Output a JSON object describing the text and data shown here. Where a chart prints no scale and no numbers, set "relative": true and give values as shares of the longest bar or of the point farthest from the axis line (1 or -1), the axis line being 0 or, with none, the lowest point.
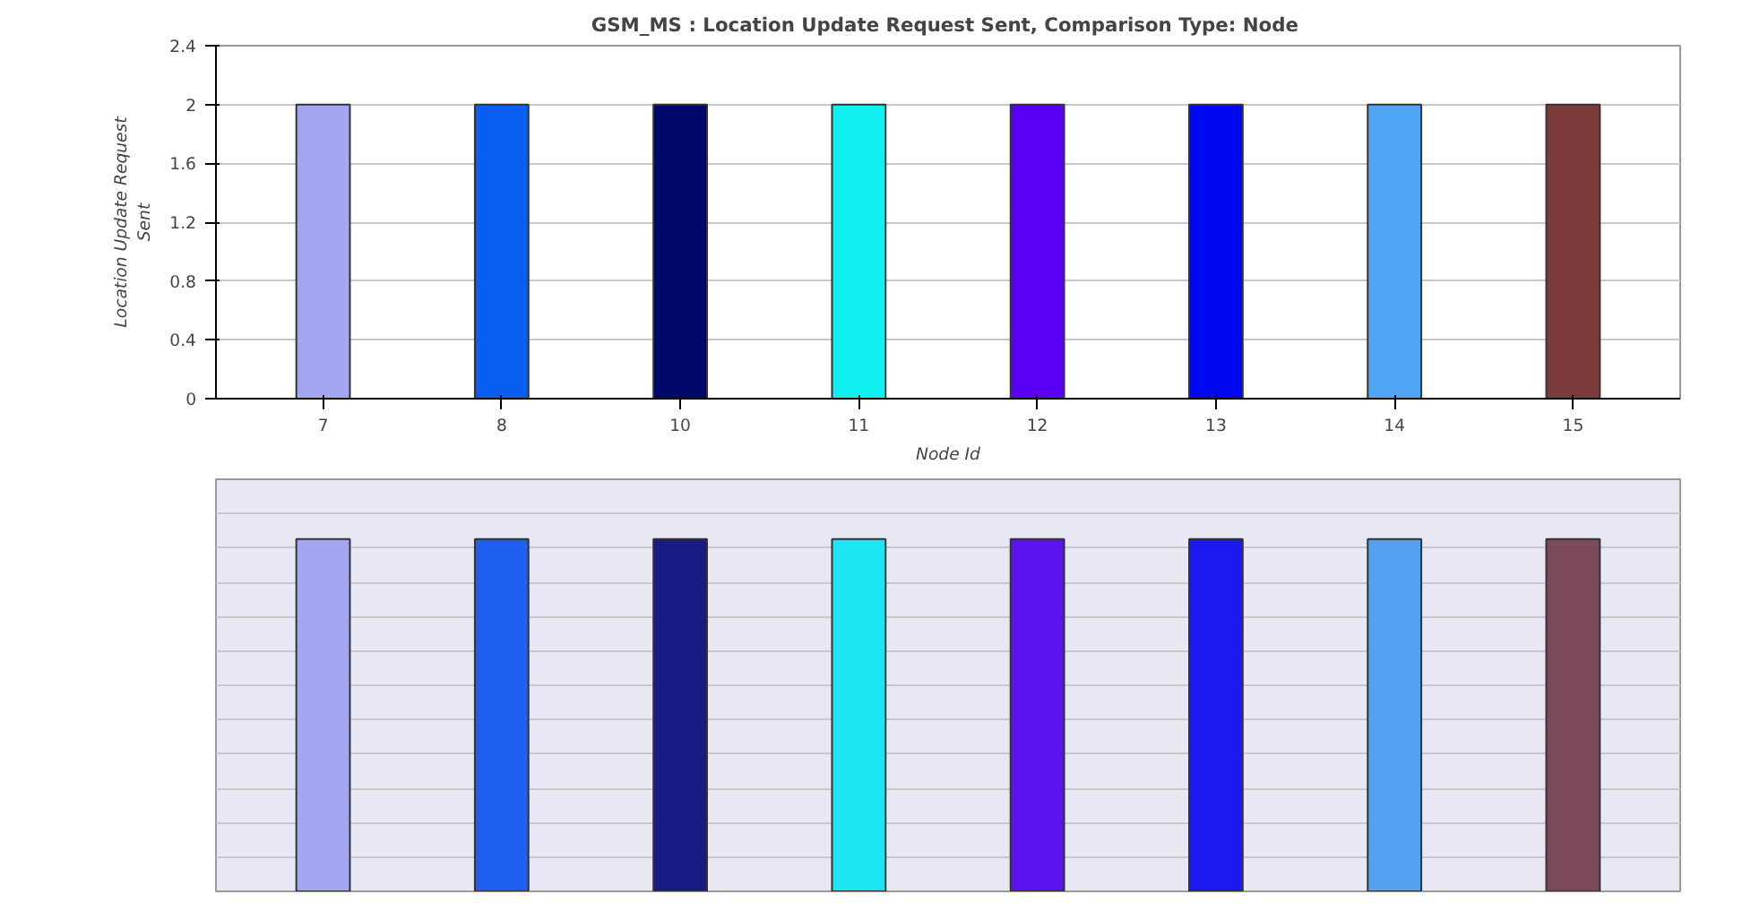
{
  "chart_data": [
    {
      "type": "bar",
      "title": "GSM_MS :  Location Update Request Sent, Comparison Type: Node",
      "xlabel": "Node Id",
      "ylabel": "Location Update Request\nSent",
      "categories": [
        "7",
        "8",
        "10",
        "11",
        "12",
        "13",
        "14",
        "15"
      ],
      "values": [
        2,
        2,
        2,
        2,
        2,
        2,
        2,
        2
      ],
      "colors": [
        "#a3a6f0",
        "#0a5ff0",
        "#00086b",
        "#10f0f0",
        "#5a00f5",
        "#0008f0",
        "#50a5f5",
        "#7d3a3a"
      ],
      "ylim": [
        0,
        2.4
      ],
      "yticks": [
        0,
        0.4,
        0.8,
        1.2,
        1.6,
        2,
        2.4
      ],
      "grid": "y"
    },
    {
      "type": "bar",
      "categories": [
        null,
        null,
        null,
        null,
        null,
        null,
        null,
        null
      ],
      "values": [
        1,
        1,
        1,
        1,
        1,
        1,
        1,
        1
      ],
      "relative": true,
      "colors": [
        "#a3a6f0",
        "#1e5ff0",
        "#1a1a85",
        "#1ae5f0",
        "#5a14f0",
        "#1a1af0",
        "#55a0f0",
        "#7d4a5a"
      ],
      "grid": "y",
      "tick_labels": false
    }
  ]
}
